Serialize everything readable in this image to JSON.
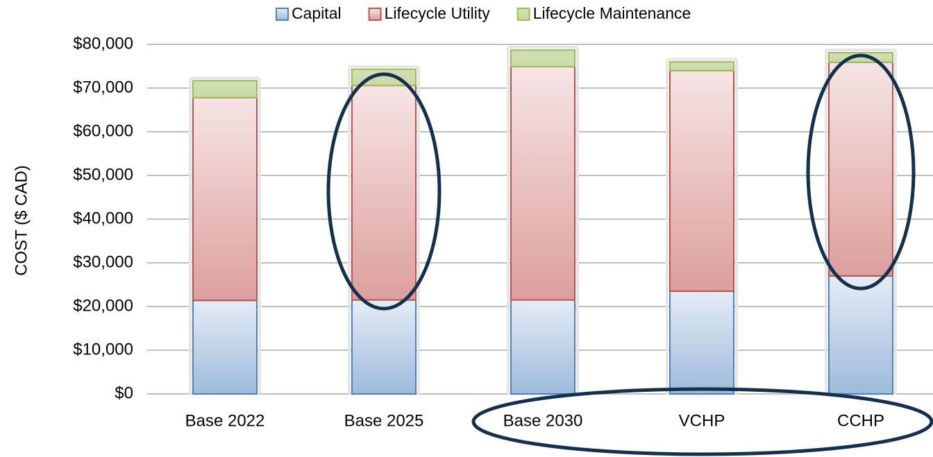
{
  "chart_data": {
    "type": "stacked_bar",
    "y_label": "COST ($ CAD)",
    "categories": [
      "Base 2022",
      "Base 2025",
      "Base 2030",
      "VCHP",
      "CCHP"
    ],
    "series": [
      {
        "name": "Capital",
        "color": "#4f81bd",
        "values": [
          21400,
          21500,
          21500,
          23500,
          27000
        ]
      },
      {
        "name": "Lifecycle Utility",
        "color": "#c0504d",
        "values": [
          46400,
          49100,
          53400,
          50500,
          48900
        ]
      },
      {
        "name": "Lifecycle Maintenance",
        "color": "#9bbb59",
        "values": [
          3900,
          3700,
          3800,
          2000,
          2200
        ]
      }
    ],
    "ylim": [
      0,
      80000
    ],
    "yticks": [
      {
        "value": 0,
        "label": "$0"
      },
      {
        "value": 10000,
        "label": "$10,000"
      },
      {
        "value": 20000,
        "label": "$20,000"
      },
      {
        "value": 30000,
        "label": "$30,000"
      },
      {
        "value": 40000,
        "label": "$40,000"
      },
      {
        "value": 50000,
        "label": "$50,000"
      },
      {
        "value": 60000,
        "label": "$60,000"
      },
      {
        "value": 70000,
        "label": "$70,000"
      },
      {
        "value": 80000,
        "label": "$80,000"
      }
    ],
    "grid": true,
    "legend": "top"
  }
}
